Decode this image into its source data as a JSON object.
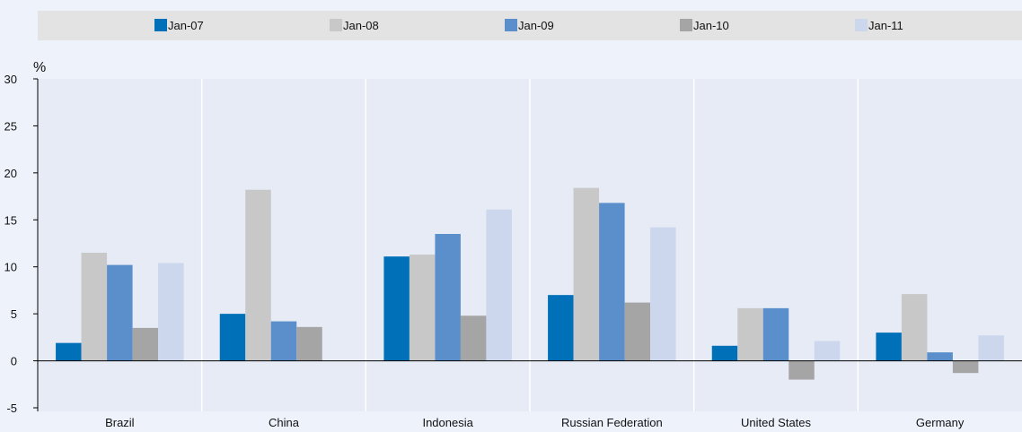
{
  "chart_data": {
    "type": "bar",
    "categories": [
      "Brazil",
      "China",
      "Indonesia",
      "Russian Federation",
      "United States",
      "Germany"
    ],
    "series": [
      {
        "name": "Jan-07",
        "color": "#0070b8",
        "values": [
          1.9,
          5.0,
          11.1,
          7.0,
          1.6,
          3.0
        ]
      },
      {
        "name": "Jan-08",
        "color": "#c8c8c8",
        "values": [
          11.5,
          18.2,
          11.3,
          18.4,
          5.6,
          7.1
        ]
      },
      {
        "name": "Jan-09",
        "color": "#5b8fcb",
        "values": [
          10.2,
          4.2,
          13.5,
          16.8,
          5.6,
          0.9
        ]
      },
      {
        "name": "Jan-10",
        "color": "#a5a5a5",
        "values": [
          3.5,
          3.6,
          4.8,
          6.2,
          -2.0,
          -1.3
        ]
      },
      {
        "name": "Jan-11",
        "color": "#ccd7ee",
        "values": [
          10.4,
          null,
          16.1,
          14.2,
          2.1,
          2.7
        ]
      }
    ],
    "ylabel": "%",
    "ylim": [
      -5,
      30
    ],
    "yticks": [
      -5,
      0,
      5,
      10,
      15,
      20,
      25,
      30
    ],
    "grid": "vertical separators",
    "legend_position": "top"
  }
}
